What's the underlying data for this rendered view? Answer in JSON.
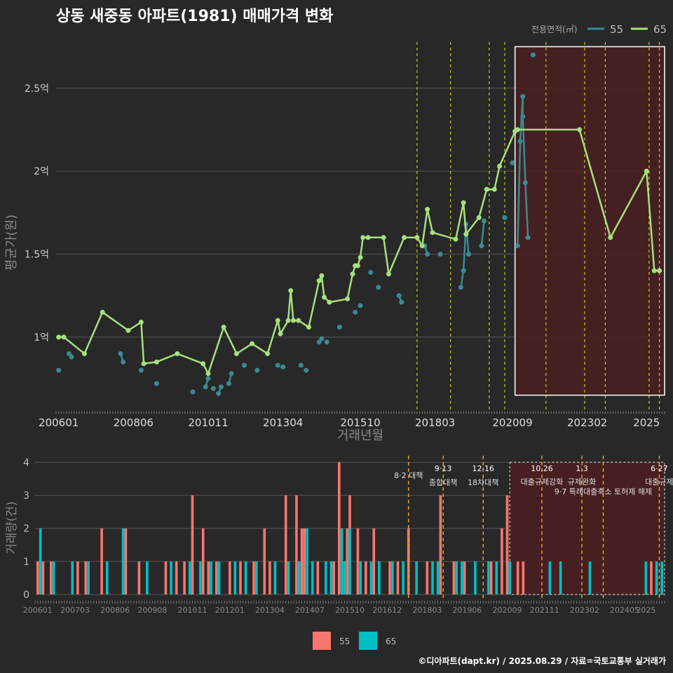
{
  "title": "상동 새중동 아파트(1981) 매매가격 변화",
  "footer": "©디아파트(dapt.kr) / 2025.08.29 / 자료=국토교통부 실거래가",
  "legend_top": {
    "title": "전용면적(㎡)",
    "items": [
      "55",
      "65"
    ]
  },
  "legend_bottom": {
    "items": [
      "55",
      "65"
    ]
  },
  "colors": {
    "bg": "#282828",
    "grid": "#555555",
    "s55_line": "#3a8a93",
    "s65_line": "#a6e07e",
    "bar55": "#f8766d",
    "bar65": "#00bfc4",
    "policy": "#e8e820",
    "policy_bar": "#e8a020",
    "shade": "#4a1e20"
  },
  "chart_data": [
    {
      "type": "line",
      "title": "상동 새중동 아파트(1981) 매매가격 변화",
      "xlabel": "거래년월",
      "ylabel": "평균가(원)",
      "x_ticks": [
        "200601",
        "200806",
        "201011",
        "201304",
        "201510",
        "201803",
        "202009",
        "202302",
        "2025"
      ],
      "y_ticks": [
        {
          "v": 1.0,
          "label": "1억"
        },
        {
          "v": 1.5,
          "label": "1.5억"
        },
        {
          "v": 2.0,
          "label": "2억"
        },
        {
          "v": 2.5,
          "label": "2.5억"
        }
      ],
      "ylim": [
        0.56,
        2.82
      ],
      "xlim": [
        "2005-12",
        "2025-08"
      ],
      "series": [
        {
          "name": "65",
          "points": [
            [
              "2006-01",
              1.0
            ],
            [
              "2006-03",
              1.0
            ],
            [
              "2006-11",
              0.9
            ],
            [
              "2007-06",
              1.15
            ],
            [
              "2008-04",
              1.04
            ],
            [
              "2008-09",
              1.09
            ],
            [
              "2008-10",
              0.84
            ],
            [
              "2009-03",
              0.85
            ],
            [
              "2009-11",
              0.9
            ],
            [
              "2010-09",
              0.84
            ],
            [
              "2010-11",
              0.78
            ],
            [
              "2011-05",
              1.06
            ],
            [
              "2011-10",
              0.9
            ],
            [
              "2012-04",
              0.96
            ],
            [
              "2012-10",
              0.9
            ],
            [
              "2013-02",
              1.1
            ],
            [
              "2013-03",
              1.02
            ],
            [
              "2013-06",
              1.1
            ],
            [
              "2013-07",
              1.28
            ],
            [
              "2013-08",
              1.1
            ],
            [
              "2013-10",
              1.1
            ],
            [
              "2014-02",
              1.06
            ],
            [
              "2014-06",
              1.34
            ],
            [
              "2014-07",
              1.37
            ],
            [
              "2014-08",
              1.24
            ],
            [
              "2014-10",
              1.21
            ],
            [
              "2015-05",
              1.23
            ],
            [
              "2015-07",
              1.38
            ],
            [
              "2015-08",
              1.43
            ],
            [
              "2015-09",
              1.43
            ],
            [
              "2015-10",
              1.48
            ],
            [
              "2015-11",
              1.6
            ],
            [
              "2016-01",
              1.6
            ],
            [
              "2016-07",
              1.6
            ],
            [
              "2016-09",
              1.38
            ],
            [
              "2017-03",
              1.6
            ],
            [
              "2017-08",
              1.6
            ],
            [
              "2017-10",
              1.55
            ],
            [
              "2017-12",
              1.77
            ],
            [
              "2018-02",
              1.63
            ],
            [
              "2018-11",
              1.59
            ],
            [
              "2019-02",
              1.81
            ],
            [
              "2019-03",
              1.62
            ],
            [
              "2019-08",
              1.72
            ],
            [
              "2019-11",
              1.89
            ],
            [
              "2020-02",
              1.89
            ],
            [
              "2020-04",
              2.03
            ],
            [
              "2020-10",
              2.24
            ],
            [
              "2020-11",
              2.25
            ],
            [
              "2022-11",
              2.25
            ],
            [
              "2023-11",
              1.6
            ],
            [
              "2025-01",
              2.0
            ],
            [
              "2025-04",
              1.4
            ],
            [
              "2025-06",
              1.4
            ]
          ]
        },
        {
          "name": "55",
          "points": [
            [
              "2006-01",
              0.8
            ],
            [
              "2006-06",
              0.88
            ],
            [
              "2006-05",
              0.9
            ],
            [
              "2008-01",
              0.9
            ],
            [
              "2008-02",
              0.85
            ],
            [
              "2008-09",
              0.8
            ],
            [
              "2009-03",
              0.72
            ],
            [
              "2010-05",
              0.67
            ],
            [
              "2010-10",
              0.7
            ],
            [
              "2010-11",
              0.75
            ],
            [
              "2011-01",
              0.69
            ],
            [
              "2011-03",
              0.66
            ],
            [
              "2011-04",
              0.7
            ],
            [
              "2011-07",
              0.72
            ],
            [
              "2011-08",
              0.78
            ],
            [
              "2012-01",
              0.83
            ],
            [
              "2012-06",
              0.8
            ],
            [
              "2013-02",
              0.83
            ],
            [
              "2013-04",
              0.82
            ],
            [
              "2013-11",
              0.83
            ],
            [
              "2014-01",
              0.8
            ],
            [
              "2014-06",
              0.97
            ],
            [
              "2014-07",
              0.99
            ],
            [
              "2014-09",
              0.97
            ],
            [
              "2015-02",
              1.06
            ],
            [
              "2015-08",
              1.15
            ],
            [
              "2015-10",
              1.19
            ],
            [
              "2016-02",
              1.39
            ],
            [
              "2016-05",
              1.3
            ],
            [
              "2017-01",
              1.25
            ],
            [
              "2017-02",
              1.21
            ],
            [
              "2017-11",
              1.55
            ],
            [
              "2017-12",
              1.5
            ],
            [
              "2018-05",
              1.5
            ],
            [
              "2019-01",
              1.3
            ],
            [
              "2019-02",
              1.4
            ],
            [
              "2019-03",
              1.68
            ],
            [
              "2019-04",
              1.5
            ],
            [
              "2019-09",
              1.55
            ],
            [
              "2019-10",
              1.7
            ],
            [
              "2020-06",
              1.72
            ],
            [
              "2020-09",
              2.05
            ],
            [
              "2020-11",
              1.55
            ],
            [
              "2020-12",
              2.18
            ],
            [
              "2021-01",
              2.45
            ],
            [
              "2021-01",
              2.33
            ],
            [
              "2021-02",
              1.93
            ],
            [
              "2021-03",
              1.6
            ],
            [
              "2021-05",
              2.7
            ]
          ]
        }
      ],
      "policy_lines": [
        "2017-08",
        "2018-09",
        "2019-12",
        "2020-06",
        "2021-10",
        "2023-01",
        "2023-09",
        "2025-02",
        "2025-06"
      ],
      "highlight": {
        "from": "2020-10",
        "to": "2025-08",
        "ymin": 0.65,
        "ymax": 2.75
      }
    },
    {
      "type": "bar",
      "ylabel": "거래량(건)",
      "x_ticks": [
        "200601",
        "200703",
        "200806",
        "200908",
        "201011",
        "201201",
        "201304",
        "201407",
        "201510",
        "201612",
        "201803",
        "201906",
        "202009",
        "202111",
        "202302",
        "202405",
        "2025"
      ],
      "y_ticks": [
        0,
        1,
        2,
        3,
        4
      ],
      "ylim": [
        0,
        4.2
      ],
      "series": [
        {
          "name": "55",
          "values": [
            [
              "2006-01",
              1
            ],
            [
              "2006-03",
              1
            ],
            [
              "2006-06",
              1
            ],
            [
              "2007-04",
              1
            ],
            [
              "2007-07",
              1
            ],
            [
              "2008-01",
              2
            ],
            [
              "2008-10",
              2
            ],
            [
              "2009-03",
              1
            ],
            [
              "2010-01",
              1
            ],
            [
              "2010-05",
              1
            ],
            [
              "2010-08",
              1
            ],
            [
              "2010-11",
              3
            ],
            [
              "2011-03",
              2
            ],
            [
              "2011-05",
              1
            ],
            [
              "2011-08",
              1
            ],
            [
              "2012-01",
              1
            ],
            [
              "2012-05",
              1
            ],
            [
              "2012-10",
              1
            ],
            [
              "2013-02",
              2
            ],
            [
              "2013-04",
              1
            ],
            [
              "2013-10",
              3
            ],
            [
              "2014-02",
              3
            ],
            [
              "2014-04",
              2
            ],
            [
              "2014-05",
              2
            ],
            [
              "2014-10",
              1
            ],
            [
              "2015-04",
              1
            ],
            [
              "2015-06",
              4
            ],
            [
              "2015-09",
              2
            ],
            [
              "2015-10",
              3
            ],
            [
              "2016-01",
              2
            ],
            [
              "2016-04",
              1
            ],
            [
              "2016-07",
              2
            ],
            [
              "2017-01",
              1
            ],
            [
              "2017-04",
              1
            ],
            [
              "2017-08",
              2
            ],
            [
              "2018-03",
              1
            ],
            [
              "2018-08",
              3
            ],
            [
              "2019-01",
              1
            ],
            [
              "2019-05",
              1
            ],
            [
              "2020-03",
              1
            ],
            [
              "2020-07",
              2
            ],
            [
              "2020-09",
              3
            ],
            [
              "2021-01",
              1
            ],
            [
              "2021-03",
              1
            ],
            [
              "2025-03",
              1
            ]
          ]
        },
        {
          "name": "65",
          "values": [
            [
              "2006-02",
              2
            ],
            [
              "2006-07",
              1
            ],
            [
              "2007-02",
              1
            ],
            [
              "2007-08",
              1
            ],
            [
              "2008-03",
              1
            ],
            [
              "2008-09",
              2
            ],
            [
              "2009-06",
              1
            ],
            [
              "2010-03",
              1
            ],
            [
              "2010-10",
              1
            ],
            [
              "2011-02",
              1
            ],
            [
              "2011-06",
              1
            ],
            [
              "2011-09",
              1
            ],
            [
              "2012-03",
              1
            ],
            [
              "2012-07",
              1
            ],
            [
              "2012-11",
              1
            ],
            [
              "2013-06",
              1
            ],
            [
              "2013-11",
              1
            ],
            [
              "2014-03",
              1
            ],
            [
              "2014-06",
              2
            ],
            [
              "2014-08",
              1
            ],
            [
              "2015-01",
              1
            ],
            [
              "2015-03",
              1
            ],
            [
              "2015-07",
              2
            ],
            [
              "2015-08",
              1
            ],
            [
              "2015-10",
              2
            ],
            [
              "2016-02",
              1
            ],
            [
              "2016-06",
              1
            ],
            [
              "2016-09",
              1
            ],
            [
              "2017-02",
              1
            ],
            [
              "2017-06",
              1
            ],
            [
              "2017-11",
              1
            ],
            [
              "2018-05",
              1
            ],
            [
              "2018-07",
              1
            ],
            [
              "2019-02",
              1
            ],
            [
              "2019-04",
              1
            ],
            [
              "2019-09",
              1
            ],
            [
              "2020-02",
              1
            ],
            [
              "2020-05",
              1
            ],
            [
              "2020-10",
              1
            ],
            [
              "2022-01",
              1
            ],
            [
              "2022-05",
              1
            ],
            [
              "2023-04",
              1
            ],
            [
              "2025-01",
              1
            ],
            [
              "2025-05",
              1
            ],
            [
              "2025-07",
              1
            ]
          ]
        }
      ],
      "policy_lines": [
        {
          "date": "2017-08",
          "date_label": "",
          "label": "8·2 대책"
        },
        {
          "date": "2018-09",
          "date_label": "9·13",
          "label": "종합대책"
        },
        {
          "date": "2019-12",
          "date_label": "12·16",
          "label": "18차대책"
        },
        {
          "date": "2021-10",
          "date_label": "10.26",
          "label": "대출규제강화"
        },
        {
          "date": "2023-01",
          "date_label": "1.3",
          "label": "규제완화"
        },
        {
          "date": "2023-09",
          "date_label": "",
          "label": "9·7 특례대출축소 토허제 해제"
        },
        {
          "date": "2025-06",
          "date_label": "6·27",
          "label": "대출규제"
        }
      ],
      "highlight": {
        "from": "2020-10",
        "to": "2025-08"
      }
    }
  ]
}
